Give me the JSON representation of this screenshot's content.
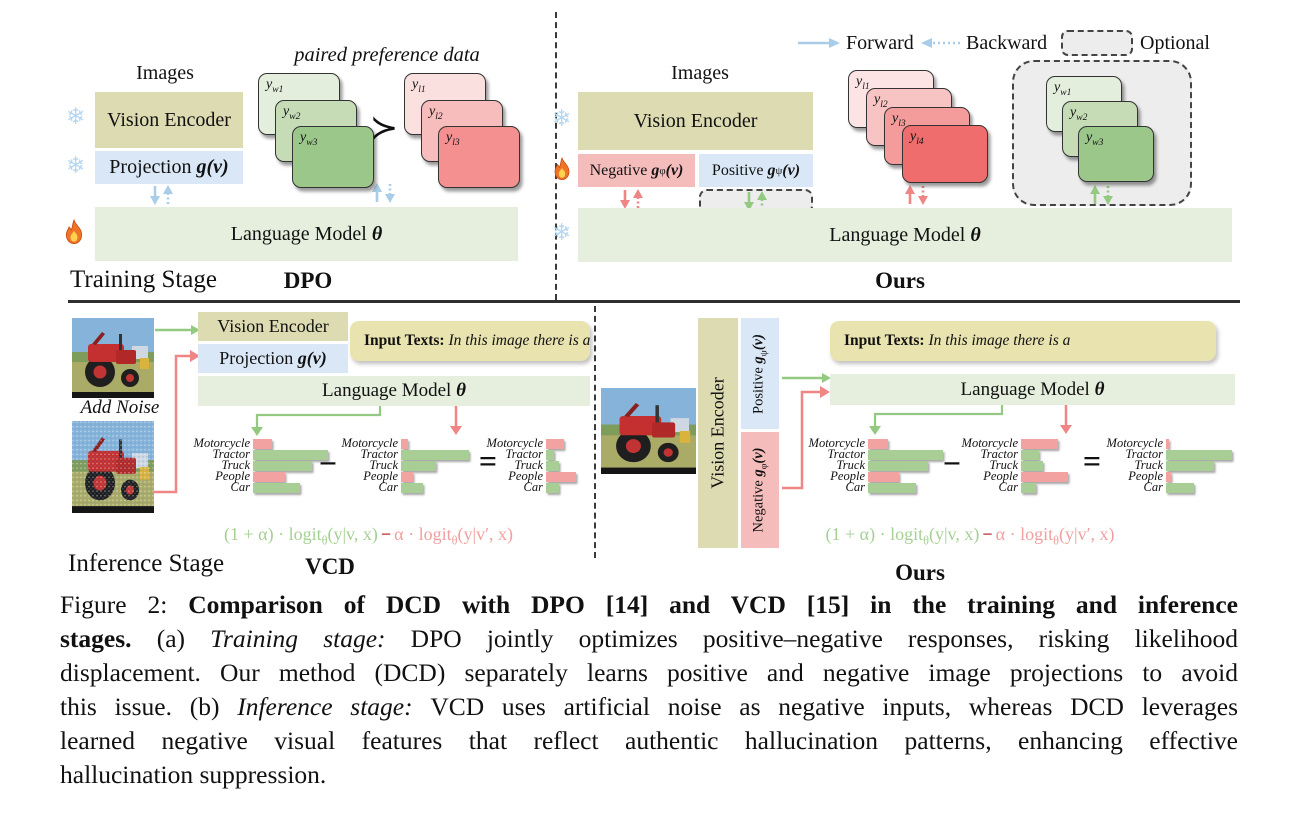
{
  "legend": {
    "forward": "Forward",
    "backward": "Backward",
    "optional": "Optional"
  },
  "training": {
    "stage_label": "Training Stage",
    "dpo": {
      "method_label": "DPO",
      "images_label": "Images",
      "paired_label": "paired preference data",
      "vision_encoder": "Vision Encoder",
      "projection": {
        "text": "Projection",
        "math": "g(v)"
      },
      "language_model": {
        "text": "Language Model",
        "math": "θ"
      },
      "succ": "≻",
      "win_cards": [
        {
          "base": "y",
          "sub": "w1"
        },
        {
          "base": "y",
          "sub": "w2"
        },
        {
          "base": "y",
          "sub": "w3"
        }
      ],
      "lose_cards": [
        {
          "base": "y",
          "sub": "l1"
        },
        {
          "base": "y",
          "sub": "l2"
        },
        {
          "base": "y",
          "sub": "l3"
        }
      ]
    },
    "ours": {
      "method_label": "Ours",
      "images_label": "Images",
      "vision_encoder": "Vision Encoder",
      "negative": {
        "text": "Negative",
        "g": "g",
        "sub": "φ",
        "rest": "(v)"
      },
      "positive": {
        "text": "Positive",
        "g": "g",
        "sub": "ψ",
        "rest": "(v)"
      },
      "language_model": {
        "text": "Language Model",
        "math": "θ"
      },
      "lose_cards": [
        {
          "base": "y",
          "sub": "l1"
        },
        {
          "base": "y",
          "sub": "l2"
        },
        {
          "base": "y",
          "sub": "l3"
        },
        {
          "base": "y",
          "sub": "l4"
        }
      ],
      "win_cards": [
        {
          "base": "y",
          "sub": "w1"
        },
        {
          "base": "y",
          "sub": "w2"
        },
        {
          "base": "y",
          "sub": "w3"
        }
      ]
    }
  },
  "inference": {
    "stage_label": "Inference Stage",
    "categories": [
      "Motorcycle",
      "Tractor",
      "Truck",
      "People",
      "Car"
    ],
    "bar_pattern": [
      "red",
      "green",
      "green",
      "red",
      "green"
    ],
    "formula": {
      "g1": "(1 + α) · logit",
      "sub": "θ",
      "g2": "(y|v, x)",
      "minus": "−",
      "r1": "α · logit",
      "r2": "(y|v′, x)"
    },
    "minus": "−",
    "equals": "=",
    "vcd": {
      "method_label": "VCD",
      "add_noise_label": "Add Noise",
      "vision_encoder": "Vision Encoder",
      "projection": {
        "text": "Projection",
        "math": "g(v)"
      },
      "language_model": {
        "text": "Language Model",
        "math": "θ"
      },
      "input_texts": {
        "bold": "Input Texts:",
        "italic": "In this image there is a"
      },
      "charts": [
        {
          "widths": [
            19,
            75,
            59,
            32,
            47
          ]
        },
        {
          "widths": [
            7,
            68,
            35,
            12,
            22
          ]
        },
        {
          "widths": [
            18,
            8,
            13,
            30,
            13
          ]
        }
      ]
    },
    "ours": {
      "method_label": "Ours",
      "vision_encoder": "Vision Encoder",
      "positive": {
        "text": "Positive",
        "g": "g",
        "sub": "ψ",
        "rest": "(v)"
      },
      "negative": {
        "text": "Negative",
        "g": "g",
        "sub": "φ",
        "rest": "(v)"
      },
      "language_model": {
        "text": "Language Model",
        "math": "θ"
      },
      "input_texts": {
        "bold": "Input Texts:",
        "italic": "In this image there is a"
      },
      "charts": [
        {
          "widths": [
            20,
            75,
            60,
            31,
            48
          ]
        },
        {
          "widths": [
            37,
            18,
            22,
            47,
            15
          ]
        },
        {
          "widths": [
            3,
            66,
            48,
            5,
            28
          ]
        }
      ]
    }
  },
  "caption": {
    "lines": [
      [
        {
          "s": "r",
          "t": "Figure 2: "
        },
        {
          "s": "b",
          "t": "Comparison of DCD with DPO [14] and VCD [15] in the training and inference"
        }
      ],
      [
        {
          "s": "b",
          "t": "stages. "
        },
        {
          "s": "r",
          "t": "(a) "
        },
        {
          "s": "i",
          "t": "Training stage: "
        },
        {
          "s": "r",
          "t": "DPO jointly optimizes positive–negative responses, risking likelihood"
        }
      ],
      [
        {
          "s": "r",
          "t": "displacement. Our method (DCD) separately learns positive and negative image projections to avoid"
        }
      ],
      [
        {
          "s": "r",
          "t": "this issue. (b) "
        },
        {
          "s": "i",
          "t": "Inference stage: "
        },
        {
          "s": "r",
          "t": "VCD uses artificial noise as negative inputs, whereas DCD leverages"
        }
      ],
      [
        {
          "s": "r",
          "t": "learned negative visual features that reflect authentic hallucination patterns, enhancing effective"
        }
      ],
      [
        {
          "s": "r",
          "t": "hallucination suppression."
        }
      ]
    ]
  },
  "colors": {
    "olive_box": "#dcdbb2",
    "blue_box": "#d9e7f6",
    "green_box": "#e6efdd",
    "pink_box": "#f5bcbc",
    "input_box": "#e9e3b0",
    "optional_fill": "#ededed",
    "card_greens": [
      "#e3eedd",
      "#c5dcb7",
      "#9bc78a"
    ],
    "card_reds3": [
      "#fbe0e0",
      "#f7bcbc",
      "#f4908f"
    ],
    "card_reds4": [
      "#fce4e4",
      "#f8c3c3",
      "#f49c9c",
      "#ef6d6d"
    ],
    "bar_green": "#a8ce96",
    "bar_red": "#f3a2a2",
    "arrow_blue": "#a9cce8",
    "arrow_green": "#93c981",
    "arrow_red": "#f08585",
    "formula_green": "#a5d093",
    "formula_red": "#f0a0a0"
  }
}
